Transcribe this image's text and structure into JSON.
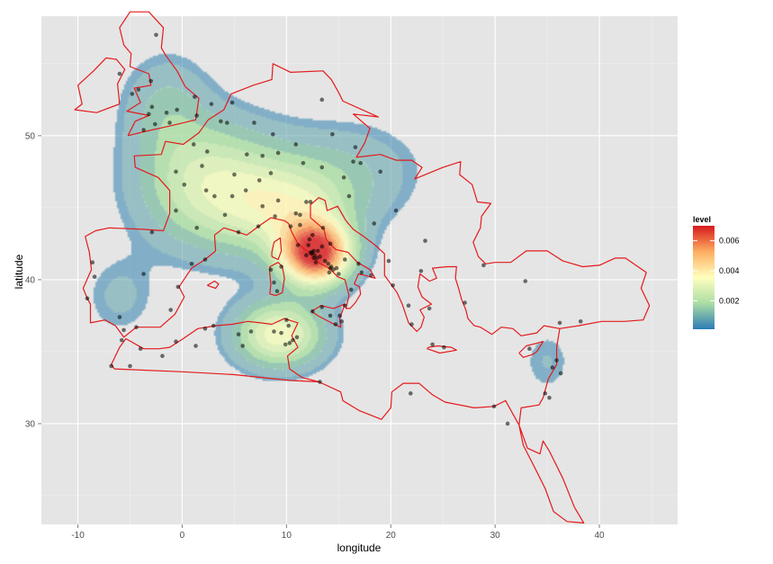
{
  "chart_data": {
    "type": "density-map",
    "xlabel": "longitude",
    "ylabel": "latitude",
    "xlim": [
      -13.5,
      47.5
    ],
    "ylim": [
      23.0,
      58.3
    ],
    "x_ticks": [
      -10,
      0,
      10,
      20,
      30,
      40
    ],
    "y_ticks": [
      30,
      40,
      50
    ],
    "grid": true,
    "legend": {
      "title": "level",
      "placement": "right",
      "range": [
        0.0001,
        0.007
      ],
      "ticks": [
        0.002,
        0.004,
        0.006
      ],
      "tick_labels": [
        "0.002",
        "0.004",
        "0.006"
      ],
      "colors": [
        "#2c7bb6",
        "#abdda4",
        "#ffffbf",
        "#fdae61",
        "#d7191c"
      ]
    },
    "density_components": [
      {
        "lon": 12.8,
        "lat": 41.8,
        "sx": 2.3,
        "sy": 1.5,
        "w": 1.0
      },
      {
        "lon": 3.0,
        "lat": 46.5,
        "sx": 4.8,
        "sy": 3.0,
        "w": 0.42
      },
      {
        "lon": 9.3,
        "lat": 36.2,
        "sx": 3.0,
        "sy": 1.6,
        "w": 0.5
      },
      {
        "lon": 10.5,
        "lat": 44.8,
        "sx": 4.0,
        "sy": 2.2,
        "w": 0.35
      },
      {
        "lon": -1.5,
        "lat": 52.0,
        "sx": 3.0,
        "sy": 2.6,
        "w": 0.16
      },
      {
        "lon": 16.0,
        "lat": 47.5,
        "sx": 5.0,
        "sy": 2.5,
        "w": 0.14
      },
      {
        "lon": -6.0,
        "lat": 38.8,
        "sx": 2.5,
        "sy": 2.0,
        "w": 0.1
      },
      {
        "lon": 35.0,
        "lat": 34.3,
        "sx": 1.8,
        "sy": 1.7,
        "w": 0.09
      }
    ],
    "points": [
      [
        -2.5,
        57.0
      ],
      [
        -3.0,
        53.8
      ],
      [
        -2.9,
        52.0
      ],
      [
        -3.2,
        51.5
      ],
      [
        -1.5,
        51.6
      ],
      [
        -0.5,
        51.8
      ],
      [
        1.2,
        52.7
      ],
      [
        2.8,
        52.2
      ],
      [
        -4.8,
        52.9
      ],
      [
        -2.6,
        50.8
      ],
      [
        -1.2,
        50.9
      ],
      [
        1.4,
        51.4
      ],
      [
        -6.0,
        54.3
      ],
      [
        -4.2,
        53.2
      ],
      [
        4.8,
        52.3
      ],
      [
        4.3,
        50.9
      ],
      [
        3.7,
        51.0
      ],
      [
        -3.7,
        50.4
      ],
      [
        2.4,
        48.9
      ],
      [
        1.1,
        49.4
      ],
      [
        -0.6,
        47.5
      ],
      [
        0.2,
        46.6
      ],
      [
        1.9,
        47.9
      ],
      [
        3.1,
        45.8
      ],
      [
        4.8,
        45.8
      ],
      [
        5.4,
        43.3
      ],
      [
        7.3,
        43.7
      ],
      [
        1.4,
        43.6
      ],
      [
        -0.6,
        44.8
      ],
      [
        4.1,
        44.5
      ],
      [
        2.3,
        46.2
      ],
      [
        5.0,
        47.3
      ],
      [
        6.2,
        48.7
      ],
      [
        7.7,
        48.6
      ],
      [
        6.1,
        46.2
      ],
      [
        7.4,
        46.9
      ],
      [
        8.5,
        47.4
      ],
      [
        9.2,
        45.5
      ],
      [
        7.7,
        45.1
      ],
      [
        8.9,
        44.4
      ],
      [
        11.3,
        44.5
      ],
      [
        10.9,
        44.6
      ],
      [
        11.9,
        45.4
      ],
      [
        12.3,
        45.4
      ],
      [
        11.3,
        43.8
      ],
      [
        10.4,
        43.7
      ],
      [
        12.5,
        43.1
      ],
      [
        13.5,
        43.6
      ],
      [
        11.1,
        42.4
      ],
      [
        12.1,
        42.4
      ],
      [
        12.5,
        41.9
      ],
      [
        12.4,
        41.8
      ],
      [
        12.7,
        41.7
      ],
      [
        12.6,
        42.0
      ],
      [
        12.3,
        41.9
      ],
      [
        12.9,
        41.5
      ],
      [
        13.2,
        41.6
      ],
      [
        12.8,
        41.2
      ],
      [
        13.7,
        41.3
      ],
      [
        14.0,
        41.1
      ],
      [
        14.2,
        40.8
      ],
      [
        14.3,
        40.9
      ],
      [
        14.5,
        40.7
      ],
      [
        14.8,
        40.8
      ],
      [
        14.1,
        40.5
      ],
      [
        15.0,
        40.4
      ],
      [
        13.4,
        42.3
      ],
      [
        14.2,
        42.5
      ],
      [
        12.2,
        42.8
      ],
      [
        13.0,
        42.0
      ],
      [
        12.6,
        41.5
      ],
      [
        11.9,
        41.7
      ],
      [
        15.6,
        41.4
      ],
      [
        16.9,
        41.1
      ],
      [
        17.2,
        40.5
      ],
      [
        18.1,
        40.3
      ],
      [
        16.2,
        39.3
      ],
      [
        15.6,
        38.2
      ],
      [
        14.2,
        37.5
      ],
      [
        13.4,
        38.1
      ],
      [
        15.1,
        37.5
      ],
      [
        12.5,
        37.8
      ],
      [
        14.7,
        36.9
      ],
      [
        15.3,
        37.1
      ],
      [
        8.5,
        40.7
      ],
      [
        9.1,
        39.2
      ],
      [
        9.5,
        40.9
      ],
      [
        8.8,
        39.8
      ],
      [
        10.2,
        36.8
      ],
      [
        10.6,
        35.8
      ],
      [
        9.5,
        36.3
      ],
      [
        11.0,
        36.0
      ],
      [
        10.0,
        37.2
      ],
      [
        8.8,
        36.4
      ],
      [
        9.9,
        35.5
      ],
      [
        10.3,
        35.6
      ],
      [
        5.4,
        36.2
      ],
      [
        6.6,
        36.4
      ],
      [
        5.8,
        35.4
      ],
      [
        3.0,
        36.8
      ],
      [
        2.2,
        36.6
      ],
      [
        -0.6,
        35.7
      ],
      [
        -5.8,
        35.8
      ],
      [
        -6.8,
        34.0
      ],
      [
        -5.0,
        34.0
      ],
      [
        -4.0,
        35.2
      ],
      [
        -1.9,
        34.7
      ],
      [
        1.3,
        35.4
      ],
      [
        -8.6,
        41.2
      ],
      [
        -9.1,
        38.7
      ],
      [
        -8.4,
        40.2
      ],
      [
        -6.0,
        37.4
      ],
      [
        -5.6,
        36.5
      ],
      [
        -4.4,
        36.7
      ],
      [
        -3.7,
        40.4
      ],
      [
        -2.9,
        43.3
      ],
      [
        2.2,
        41.4
      ],
      [
        0.9,
        41.1
      ],
      [
        -0.4,
        39.5
      ],
      [
        -1.1,
        37.9
      ],
      [
        16.4,
        48.2
      ],
      [
        17.1,
        48.1
      ],
      [
        19.0,
        47.5
      ],
      [
        14.4,
        50.1
      ],
      [
        16.6,
        49.2
      ],
      [
        15.5,
        47.1
      ],
      [
        13.4,
        47.8
      ],
      [
        11.6,
        48.1
      ],
      [
        10.9,
        49.4
      ],
      [
        9.2,
        48.8
      ],
      [
        8.7,
        50.1
      ],
      [
        6.9,
        50.9
      ],
      [
        13.4,
        52.5
      ],
      [
        16.0,
        45.8
      ],
      [
        18.4,
        43.9
      ],
      [
        20.5,
        44.8
      ],
      [
        23.3,
        42.7
      ],
      [
        23.7,
        38.0
      ],
      [
        22.9,
        40.6
      ],
      [
        21.7,
        38.2
      ],
      [
        28.9,
        41.0
      ],
      [
        27.1,
        38.4
      ],
      [
        32.9,
        39.9
      ],
      [
        35.5,
        33.9
      ],
      [
        36.3,
        33.5
      ],
      [
        35.2,
        31.8
      ],
      [
        34.8,
        32.1
      ],
      [
        35.9,
        34.4
      ],
      [
        33.3,
        35.2
      ],
      [
        36.2,
        37.0
      ],
      [
        38.2,
        37.1
      ],
      [
        31.2,
        30.0
      ],
      [
        29.9,
        31.2
      ],
      [
        21.9,
        32.1
      ],
      [
        13.2,
        32.9
      ],
      [
        22.0,
        36.9
      ],
      [
        20.2,
        39.6
      ],
      [
        24.0,
        35.5
      ],
      [
        25.1,
        35.3
      ],
      [
        19.8,
        41.3
      ]
    ]
  }
}
